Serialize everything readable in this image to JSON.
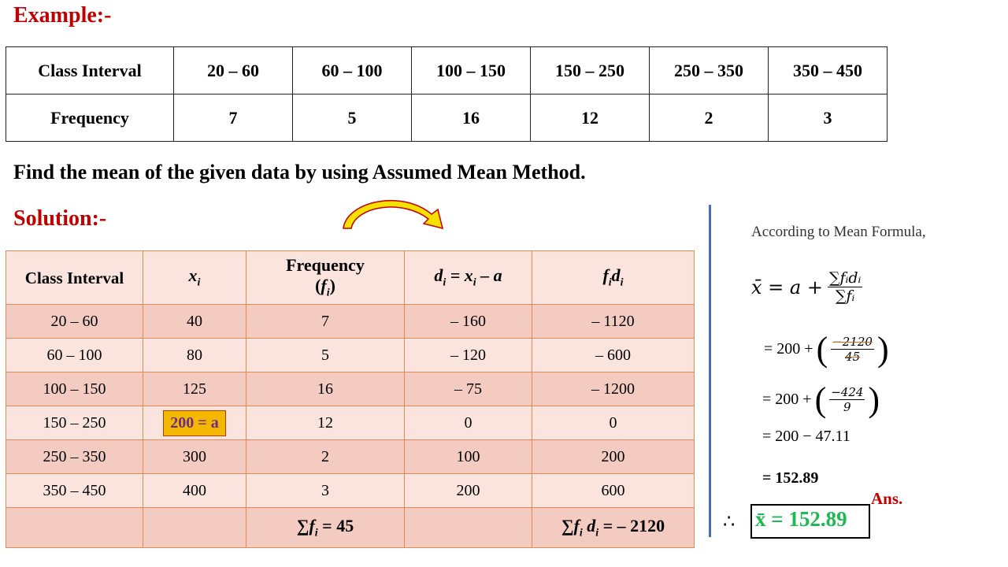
{
  "example_heading": "Example:-",
  "data_table": {
    "row1_label": "Class Interval",
    "intervals": [
      "20 – 60",
      "60 – 100",
      "100 – 150",
      "150 – 250",
      "250 – 350",
      "350 – 450"
    ],
    "row2_label": "Frequency",
    "frequencies": [
      "7",
      "5",
      "16",
      "12",
      "2",
      "3"
    ]
  },
  "question": "Find the mean of the given data by using Assumed Mean Method.",
  "solution_heading": "Solution:-",
  "solution_table": {
    "headers": {
      "class_interval": "Class Interval",
      "xi": "x",
      "xi_sub": "i",
      "freq_line1": "Frequency",
      "freq_line2_f": "f",
      "freq_line2_sub": "i",
      "di_eq": "d",
      "di_rest": " = x",
      "di_rest2": " – a",
      "fidi_f": "f",
      "fidi_d": "d"
    },
    "rows": [
      {
        "ci": "20 – 60",
        "x": "40",
        "f": "7",
        "d": "– 160",
        "fd": "– 1120"
      },
      {
        "ci": "60 – 100",
        "x": "80",
        "f": "5",
        "d": "– 120",
        "fd": "– 600"
      },
      {
        "ci": "100 – 150",
        "x": "125",
        "f": "16",
        "d": "– 75",
        "fd": "– 1200"
      },
      {
        "ci": "150 – 250",
        "x": "200 = a",
        "f": "12",
        "d": "0",
        "fd": "0"
      },
      {
        "ci": "250 – 350",
        "x": "300",
        "f": "2",
        "d": "100",
        "fd": "200"
      },
      {
        "ci": "350 – 450",
        "x": "400",
        "f": "3",
        "d": "200",
        "fd": "600"
      }
    ],
    "sum_f": "= 45",
    "sum_fd": "= – 2120"
  },
  "right_panel": {
    "formula_title": "According to Mean Formula,",
    "step1_lhs": "x̄ = a +",
    "step1_num": "∑fᵢdᵢ",
    "step1_den": "∑fᵢ",
    "step2_prefix": "= 200 +",
    "step2_num": "−2120",
    "step2_den": "45",
    "step3_prefix": "= 200 +",
    "step3_num": "−424",
    "step3_den": "9",
    "step4": "= 200 − 47.11",
    "step5": "= 152.89",
    "ans_label": "Ans.",
    "therefore": "∴",
    "final": "x̄ = 152.89"
  },
  "colors": {
    "heading_red": "#c00000",
    "table_border": "#e08a5a",
    "row_dark": "#f3cbc1",
    "row_light": "#fbe4de",
    "divider_blue": "#4a6db5",
    "answer_green": "#1db954",
    "arrow_yellow": "#f5e000",
    "arrow_outline": "#c00000",
    "highlight": "#f5b800"
  }
}
